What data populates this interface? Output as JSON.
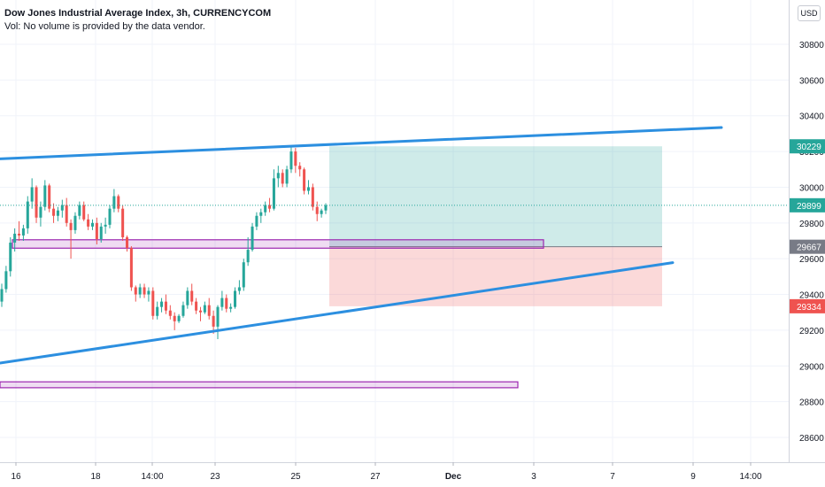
{
  "header": {
    "title": "Dow Jones Industrial Average Index, 3h, CURRENCYCOM",
    "volume_note": "Vol: No volume is provided by the data vendor."
  },
  "currency_button": "USD",
  "chart_data": {
    "type": "candlestick",
    "price_axis": {
      "ticks": [
        30800,
        30600,
        30400,
        30200,
        30000,
        29800,
        29600,
        29400,
        29200,
        29000,
        28800,
        28600
      ],
      "ylim": [
        28480,
        30990
      ]
    },
    "time_axis": {
      "labels": [
        "16",
        "18",
        "14:00",
        "23",
        "25",
        "27",
        "Dec",
        "3",
        "7",
        "9",
        "14:00"
      ],
      "bold": [
        "Dec"
      ]
    },
    "price_tags": [
      {
        "label": "30229",
        "value": 30229,
        "color": "#26a69a"
      },
      {
        "label": "29899",
        "value": 29899,
        "color": "#26a69a"
      },
      {
        "label": "29667",
        "value": 29667,
        "color": "#787b86"
      },
      {
        "label": "29334",
        "value": 29334,
        "color": "#ef5350"
      }
    ],
    "current_price": 29899,
    "colors": {
      "up": "#26a69a",
      "down": "#ef5350",
      "trendline": "#2c8fe0",
      "zone": "#9c27b0"
    },
    "trendlines": [
      {
        "from": [
          0,
          30159
        ],
        "to": [
          815,
          30334
        ]
      },
      {
        "from": [
          0,
          29016
        ],
        "to": [
          760,
          29578
        ]
      }
    ],
    "zones": [
      {
        "x1": 14,
        "x2": 614,
        "top": 29706,
        "bottom": 29659
      },
      {
        "x1": 0,
        "x2": 585,
        "top": 28911,
        "bottom": 28878
      }
    ],
    "position": {
      "x1": 372,
      "x2": 748,
      "entry": 29667,
      "target": 30229,
      "stop": 29334
    },
    "candles": [
      {
        "o": 29360,
        "h": 29460,
        "l": 29330,
        "c": 29430
      },
      {
        "o": 29430,
        "h": 29560,
        "l": 29410,
        "c": 29530
      },
      {
        "o": 29530,
        "h": 29720,
        "l": 29500,
        "c": 29690
      },
      {
        "o": 29690,
        "h": 29770,
        "l": 29640,
        "c": 29740
      },
      {
        "o": 29740,
        "h": 29810,
        "l": 29700,
        "c": 29730
      },
      {
        "o": 29730,
        "h": 29790,
        "l": 29700,
        "c": 29770
      },
      {
        "o": 29770,
        "h": 29950,
        "l": 29740,
        "c": 29920
      },
      {
        "o": 29920,
        "h": 30050,
        "l": 29880,
        "c": 30000
      },
      {
        "o": 30000,
        "h": 30010,
        "l": 29800,
        "c": 29830
      },
      {
        "o": 29830,
        "h": 29920,
        "l": 29780,
        "c": 29890
      },
      {
        "o": 29890,
        "h": 30040,
        "l": 29870,
        "c": 30010
      },
      {
        "o": 30010,
        "h": 30020,
        "l": 29860,
        "c": 29880
      },
      {
        "o": 29880,
        "h": 29910,
        "l": 29800,
        "c": 29840
      },
      {
        "o": 29840,
        "h": 29890,
        "l": 29810,
        "c": 29870
      },
      {
        "o": 29870,
        "h": 29930,
        "l": 29830,
        "c": 29900
      },
      {
        "o": 29900,
        "h": 29940,
        "l": 29780,
        "c": 29800
      },
      {
        "o": 29800,
        "h": 29820,
        "l": 29600,
        "c": 29760
      },
      {
        "o": 29760,
        "h": 29860,
        "l": 29740,
        "c": 29840
      },
      {
        "o": 29840,
        "h": 29920,
        "l": 29820,
        "c": 29900
      },
      {
        "o": 29900,
        "h": 29920,
        "l": 29810,
        "c": 29820
      },
      {
        "o": 29820,
        "h": 29850,
        "l": 29760,
        "c": 29780
      },
      {
        "o": 29780,
        "h": 29820,
        "l": 29760,
        "c": 29800
      },
      {
        "o": 29800,
        "h": 29830,
        "l": 29680,
        "c": 29710
      },
      {
        "o": 29710,
        "h": 29800,
        "l": 29690,
        "c": 29780
      },
      {
        "o": 29780,
        "h": 29830,
        "l": 29740,
        "c": 29790
      },
      {
        "o": 29790,
        "h": 29900,
        "l": 29770,
        "c": 29880
      },
      {
        "o": 29880,
        "h": 29990,
        "l": 29860,
        "c": 29950
      },
      {
        "o": 29950,
        "h": 29960,
        "l": 29860,
        "c": 29880
      },
      {
        "o": 29880,
        "h": 29900,
        "l": 29700,
        "c": 29720
      },
      {
        "o": 29720,
        "h": 29730,
        "l": 29640,
        "c": 29660
      },
      {
        "o": 29660,
        "h": 29670,
        "l": 29420,
        "c": 29440
      },
      {
        "o": 29440,
        "h": 29450,
        "l": 29360,
        "c": 29400
      },
      {
        "o": 29400,
        "h": 29460,
        "l": 29380,
        "c": 29440
      },
      {
        "o": 29440,
        "h": 29460,
        "l": 29380,
        "c": 29400
      },
      {
        "o": 29400,
        "h": 29440,
        "l": 29360,
        "c": 29420
      },
      {
        "o": 29420,
        "h": 29440,
        "l": 29260,
        "c": 29280
      },
      {
        "o": 29280,
        "h": 29360,
        "l": 29260,
        "c": 29330
      },
      {
        "o": 29330,
        "h": 29380,
        "l": 29300,
        "c": 29360
      },
      {
        "o": 29360,
        "h": 29400,
        "l": 29290,
        "c": 29310
      },
      {
        "o": 29310,
        "h": 29340,
        "l": 29260,
        "c": 29280
      },
      {
        "o": 29280,
        "h": 29300,
        "l": 29200,
        "c": 29250
      },
      {
        "o": 29250,
        "h": 29290,
        "l": 29240,
        "c": 29280
      },
      {
        "o": 29280,
        "h": 29360,
        "l": 29270,
        "c": 29340
      },
      {
        "o": 29340,
        "h": 29440,
        "l": 29320,
        "c": 29420
      },
      {
        "o": 29420,
        "h": 29460,
        "l": 29340,
        "c": 29360
      },
      {
        "o": 29360,
        "h": 29380,
        "l": 29290,
        "c": 29310
      },
      {
        "o": 29310,
        "h": 29330,
        "l": 29250,
        "c": 29300
      },
      {
        "o": 29300,
        "h": 29360,
        "l": 29290,
        "c": 29340
      },
      {
        "o": 29340,
        "h": 29380,
        "l": 29260,
        "c": 29280
      },
      {
        "o": 29280,
        "h": 29310,
        "l": 29180,
        "c": 29220
      },
      {
        "o": 29220,
        "h": 29340,
        "l": 29150,
        "c": 29330
      },
      {
        "o": 29330,
        "h": 29420,
        "l": 29310,
        "c": 29380
      },
      {
        "o": 29380,
        "h": 29400,
        "l": 29300,
        "c": 29320
      },
      {
        "o": 29320,
        "h": 29350,
        "l": 29300,
        "c": 29330
      },
      {
        "o": 29330,
        "h": 29440,
        "l": 29320,
        "c": 29420
      },
      {
        "o": 29420,
        "h": 29480,
        "l": 29400,
        "c": 29440
      },
      {
        "o": 29440,
        "h": 29600,
        "l": 29420,
        "c": 29580
      },
      {
        "o": 29580,
        "h": 29720,
        "l": 29560,
        "c": 29650
      },
      {
        "o": 29650,
        "h": 29800,
        "l": 29640,
        "c": 29780
      },
      {
        "o": 29780,
        "h": 29860,
        "l": 29760,
        "c": 29840
      },
      {
        "o": 29840,
        "h": 29880,
        "l": 29800,
        "c": 29860
      },
      {
        "o": 29860,
        "h": 29920,
        "l": 29840,
        "c": 29900
      },
      {
        "o": 29900,
        "h": 29940,
        "l": 29860,
        "c": 29880
      },
      {
        "o": 29880,
        "h": 30100,
        "l": 29870,
        "c": 30050
      },
      {
        "o": 30050,
        "h": 30120,
        "l": 30000,
        "c": 30080
      },
      {
        "o": 30080,
        "h": 30100,
        "l": 30000,
        "c": 30020
      },
      {
        "o": 30020,
        "h": 30120,
        "l": 30000,
        "c": 30100
      },
      {
        "o": 30100,
        "h": 30230,
        "l": 30080,
        "c": 30200
      },
      {
        "o": 30200,
        "h": 30220,
        "l": 30080,
        "c": 30120
      },
      {
        "o": 30120,
        "h": 30140,
        "l": 30060,
        "c": 30100
      },
      {
        "o": 30100,
        "h": 30110,
        "l": 29960,
        "c": 29980
      },
      {
        "o": 29980,
        "h": 30040,
        "l": 29960,
        "c": 30000
      },
      {
        "o": 30000,
        "h": 30020,
        "l": 29870,
        "c": 29890
      },
      {
        "o": 29890,
        "h": 29920,
        "l": 29810,
        "c": 29850
      },
      {
        "o": 29850,
        "h": 29880,
        "l": 29830,
        "c": 29870
      },
      {
        "o": 29870,
        "h": 29910,
        "l": 29850,
        "c": 29899
      }
    ]
  }
}
